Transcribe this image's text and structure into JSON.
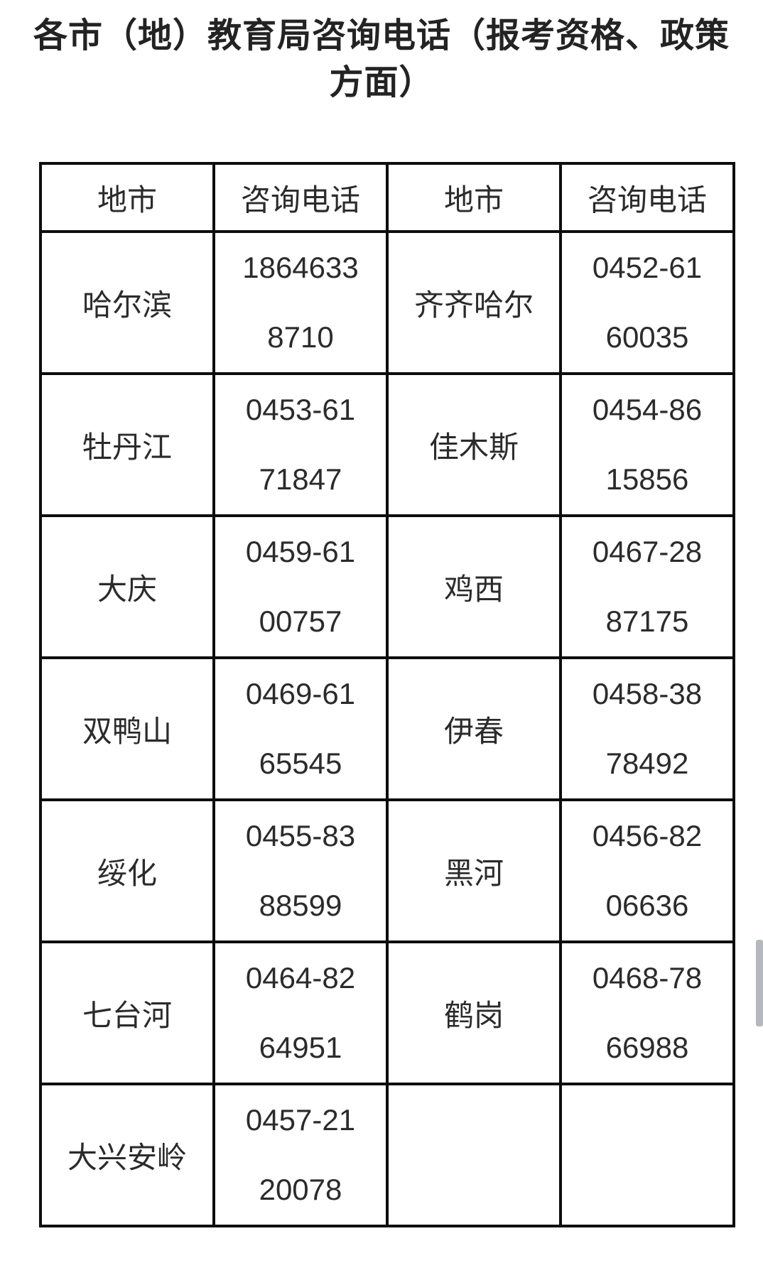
{
  "title": {
    "line1": "各市（地）教育局咨询电话（报考资格、政策",
    "line2": "方面）"
  },
  "table": {
    "headers": {
      "city_left": "地市",
      "phone_left": "咨询电话",
      "city_right": "地市",
      "phone_right": "咨询电话"
    },
    "rows": [
      {
        "city_left": "哈尔滨",
        "phone_left": "1864633\n8710",
        "city_right": "齐齐哈尔",
        "phone_right": "0452-61\n60035"
      },
      {
        "city_left": "牡丹江",
        "phone_left": "0453-61\n71847",
        "city_right": "佳木斯",
        "phone_right": "0454-86\n15856"
      },
      {
        "city_left": "大庆",
        "phone_left": "0459-61\n00757",
        "city_right": "鸡西",
        "phone_right": "0467-28\n87175"
      },
      {
        "city_left": "双鸭山",
        "phone_left": "0469-61\n65545",
        "city_right": "伊春",
        "phone_right": "0458-38\n78492"
      },
      {
        "city_left": "绥化",
        "phone_left": "0455-83\n88599",
        "city_right": "黑河",
        "phone_right": "0456-82\n06636"
      },
      {
        "city_left": "七台河",
        "phone_left": "0464-82\n64951",
        "city_right": "鹤岗",
        "phone_right": "0468-78\n66988"
      },
      {
        "city_left": "大兴安岭",
        "phone_left": "0457-21\n20078",
        "city_right": "",
        "phone_right": ""
      }
    ]
  },
  "colors": {
    "background": "#ffffff",
    "title_text": "#232323",
    "body_text": "#2b2b2b",
    "table_border": "#0d0d0d",
    "scrollbar_thumb": "#b5b9bd"
  }
}
